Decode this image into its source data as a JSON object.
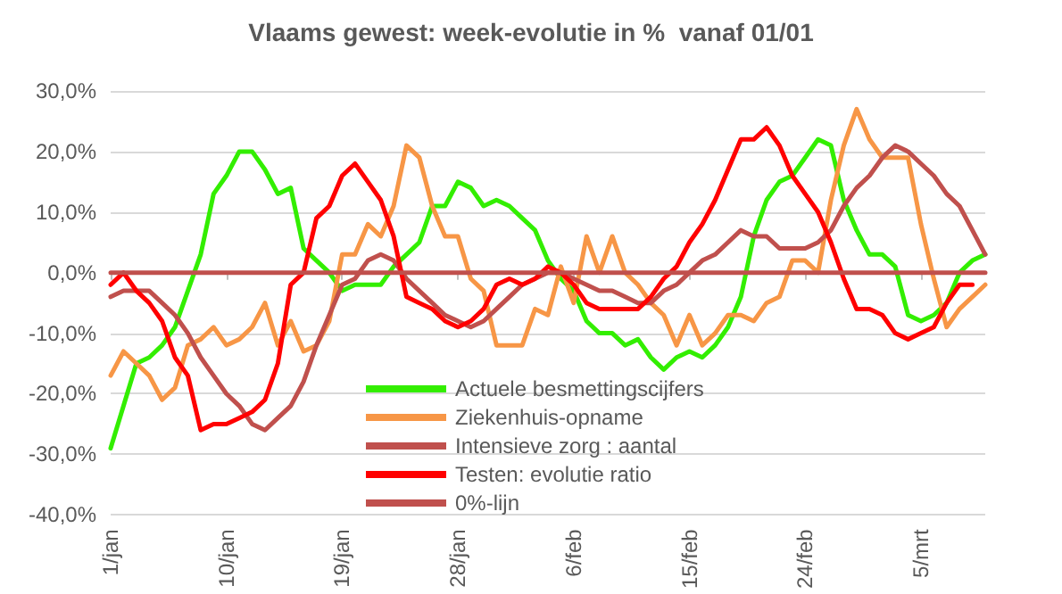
{
  "chart_data": {
    "type": "line",
    "title": "Vlaams gewest: week-evolutie in %  vanaf 01/01",
    "categories": [
      "1/jan",
      null,
      null,
      null,
      null,
      null,
      null,
      null,
      null,
      "10/jan",
      null,
      null,
      null,
      null,
      null,
      null,
      null,
      null,
      "19/jan",
      null,
      null,
      null,
      null,
      null,
      null,
      null,
      null,
      "28/jan",
      null,
      null,
      null,
      null,
      null,
      null,
      null,
      null,
      "6/feb",
      null,
      null,
      null,
      null,
      null,
      null,
      null,
      null,
      "15/feb",
      null,
      null,
      null,
      null,
      null,
      null,
      null,
      null,
      "24/feb",
      null,
      null,
      null,
      null,
      null,
      null,
      null,
      null,
      "5/mrt",
      null,
      null,
      null,
      null,
      null
    ],
    "series": [
      {
        "name": "Actuele besmettingscijfers",
        "color": "#33ee00",
        "values": [
          -29,
          -22,
          -15,
          -14,
          -12,
          -9,
          -3,
          3,
          13,
          16,
          20,
          20,
          17,
          13,
          14,
          4,
          2,
          0,
          -3,
          -2,
          -2,
          -2,
          1,
          3,
          5,
          11,
          11,
          15,
          14,
          11,
          12,
          11,
          9,
          7,
          2,
          -1,
          -3,
          -8,
          -10,
          -10,
          -12,
          -11,
          -14,
          -16,
          -14,
          -13,
          -14,
          -12,
          -9,
          -4,
          6,
          12,
          15,
          16,
          19,
          22,
          21,
          12,
          7,
          3,
          3,
          1,
          -7,
          -8,
          -7,
          -5,
          0,
          2,
          3
        ]
      },
      {
        "name": "Ziekenhuis-opname",
        "color": "#f79646",
        "values": [
          -17,
          -13,
          -15,
          -17,
          -21,
          -19,
          -12,
          -11,
          -9,
          -12,
          -11,
          -9,
          -5,
          -12,
          -8,
          -13,
          -12,
          -8,
          3,
          3,
          8,
          6,
          11,
          21,
          19,
          11,
          6,
          6,
          -1,
          -3,
          -12,
          -12,
          -12,
          -6,
          -7,
          1,
          -5,
          6,
          0,
          6,
          0,
          -2,
          -5,
          -7,
          -12,
          -7,
          -12,
          -10,
          -7,
          -7,
          -8,
          -5,
          -4,
          2,
          2,
          0,
          12,
          21,
          27,
          22,
          19,
          19,
          19,
          8,
          -1,
          -9,
          -6,
          -4,
          -2
        ]
      },
      {
        "name": "Intensieve zorg : aantal",
        "color": "#c0504d",
        "values": [
          -4,
          -3,
          -3,
          -3,
          -5,
          -7,
          -10,
          -14,
          -17,
          -20,
          -22,
          -25,
          -26,
          -24,
          -22,
          -18,
          -12,
          -7,
          -2,
          -1,
          2,
          3,
          2,
          -1,
          -3,
          -5,
          -7,
          -8,
          -9,
          -8,
          -6,
          -4,
          -2,
          -1,
          0,
          0,
          -1,
          -2,
          -3,
          -3,
          -4,
          -5,
          -5,
          -3,
          -2,
          0,
          2,
          3,
          5,
          7,
          6,
          6,
          4,
          4,
          4,
          5,
          7,
          11,
          14,
          16,
          19,
          21,
          20,
          18,
          16,
          13,
          11,
          7,
          3
        ]
      },
      {
        "name": "Testen: evolutie ratio",
        "color": "#ff0000",
        "values": [
          -2,
          0,
          -3,
          -5,
          -8,
          -14,
          -17,
          -26,
          -25,
          -25,
          -24,
          -23,
          -21,
          -15,
          -2,
          0,
          9,
          11,
          16,
          18,
          15,
          12,
          6,
          -4,
          -5,
          -6,
          -8,
          -9,
          -8,
          -6,
          -2,
          -1,
          -2,
          -1,
          1,
          0,
          -2,
          -5,
          -6,
          -6,
          -6,
          -6,
          -4,
          -1,
          1,
          5,
          8,
          12,
          17,
          22,
          22,
          24,
          21,
          16,
          13,
          10,
          5,
          -1,
          -6,
          -6,
          -7,
          -10,
          -11,
          -10,
          -9,
          -5,
          -2,
          -2,
          null
        ]
      },
      {
        "name": "0%-lijn",
        "color": "#c0504d",
        "values": [
          0,
          0,
          0,
          0,
          0,
          0,
          0,
          0,
          0,
          0,
          0,
          0,
          0,
          0,
          0,
          0,
          0,
          0,
          0,
          0,
          0,
          0,
          0,
          0,
          0,
          0,
          0,
          0,
          0,
          0,
          0,
          0,
          0,
          0,
          0,
          0,
          0,
          0,
          0,
          0,
          0,
          0,
          0,
          0,
          0,
          0,
          0,
          0,
          0,
          0,
          0,
          0,
          0,
          0,
          0,
          0,
          0,
          0,
          0,
          0,
          0,
          0,
          0,
          0,
          0,
          0,
          0,
          0,
          0
        ]
      }
    ],
    "ylim": [
      -40,
      30
    ],
    "yticks": [
      {
        "value": -40,
        "label": "-40,0%"
      },
      {
        "value": -30,
        "label": "-30,0%"
      },
      {
        "value": -20,
        "label": "-20,0%"
      },
      {
        "value": -10,
        "label": "-10,0%"
      },
      {
        "value": 0,
        "label": "0,0%"
      },
      {
        "value": 10,
        "label": "10,0%"
      },
      {
        "value": 20,
        "label": "20,0%"
      },
      {
        "value": 30,
        "label": "30,0%"
      }
    ],
    "grid": "y",
    "legend": "bottom",
    "marker": "none",
    "line_style": "solid"
  }
}
